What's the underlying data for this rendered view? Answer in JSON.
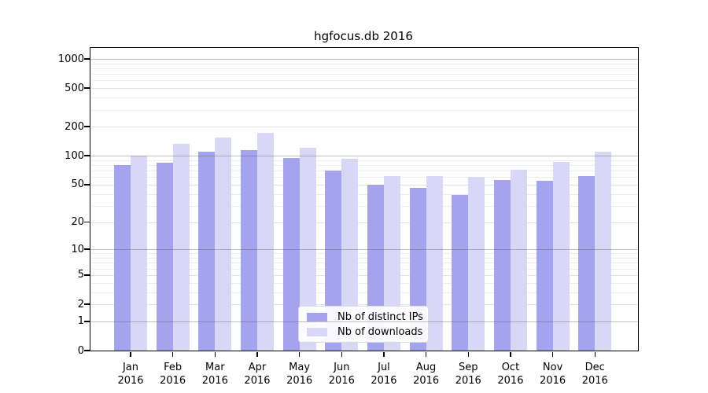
{
  "chart_data": {
    "type": "bar",
    "title": "hgfocus.db 2016",
    "scale_y": "symlog-ln(1+v)",
    "ylim": [
      0,
      1300
    ],
    "grid": true,
    "legend_position": "bottom-center",
    "categories": [
      "Jan",
      "Feb",
      "Mar",
      "Apr",
      "May",
      "Jun",
      "Jul",
      "Aug",
      "Sep",
      "Oct",
      "Nov",
      "Dec"
    ],
    "year_label": "2016",
    "series": [
      {
        "key": "distinct-ips",
        "name": "Nb of distinct IPs",
        "color": "#a3a3ee",
        "values": [
          80,
          85,
          110,
          114,
          95,
          70,
          50,
          46,
          39,
          56,
          55,
          61
        ]
      },
      {
        "key": "downloads",
        "name": "Nb of downloads",
        "color": "#d8d8f6",
        "values": [
          101,
          134,
          155,
          173,
          122,
          93,
          62,
          61,
          60,
          71,
          86,
          110
        ]
      }
    ],
    "y_ticks": [
      0,
      1,
      2,
      5,
      10,
      20,
      50,
      100,
      200,
      500,
      1000
    ],
    "y_tick_labels": [
      "0",
      "1",
      "2",
      "5",
      "10",
      "20",
      "50",
      "100",
      "200",
      "500",
      "1000"
    ],
    "y_grid_decades": [
      1,
      10,
      100,
      1000
    ],
    "y_grid_sub": [
      2,
      5,
      20,
      50,
      200,
      500
    ],
    "y_grid_minor": [
      3,
      4,
      6,
      7,
      8,
      9,
      30,
      40,
      60,
      70,
      80,
      90,
      300,
      400,
      600,
      700,
      800,
      900
    ]
  }
}
